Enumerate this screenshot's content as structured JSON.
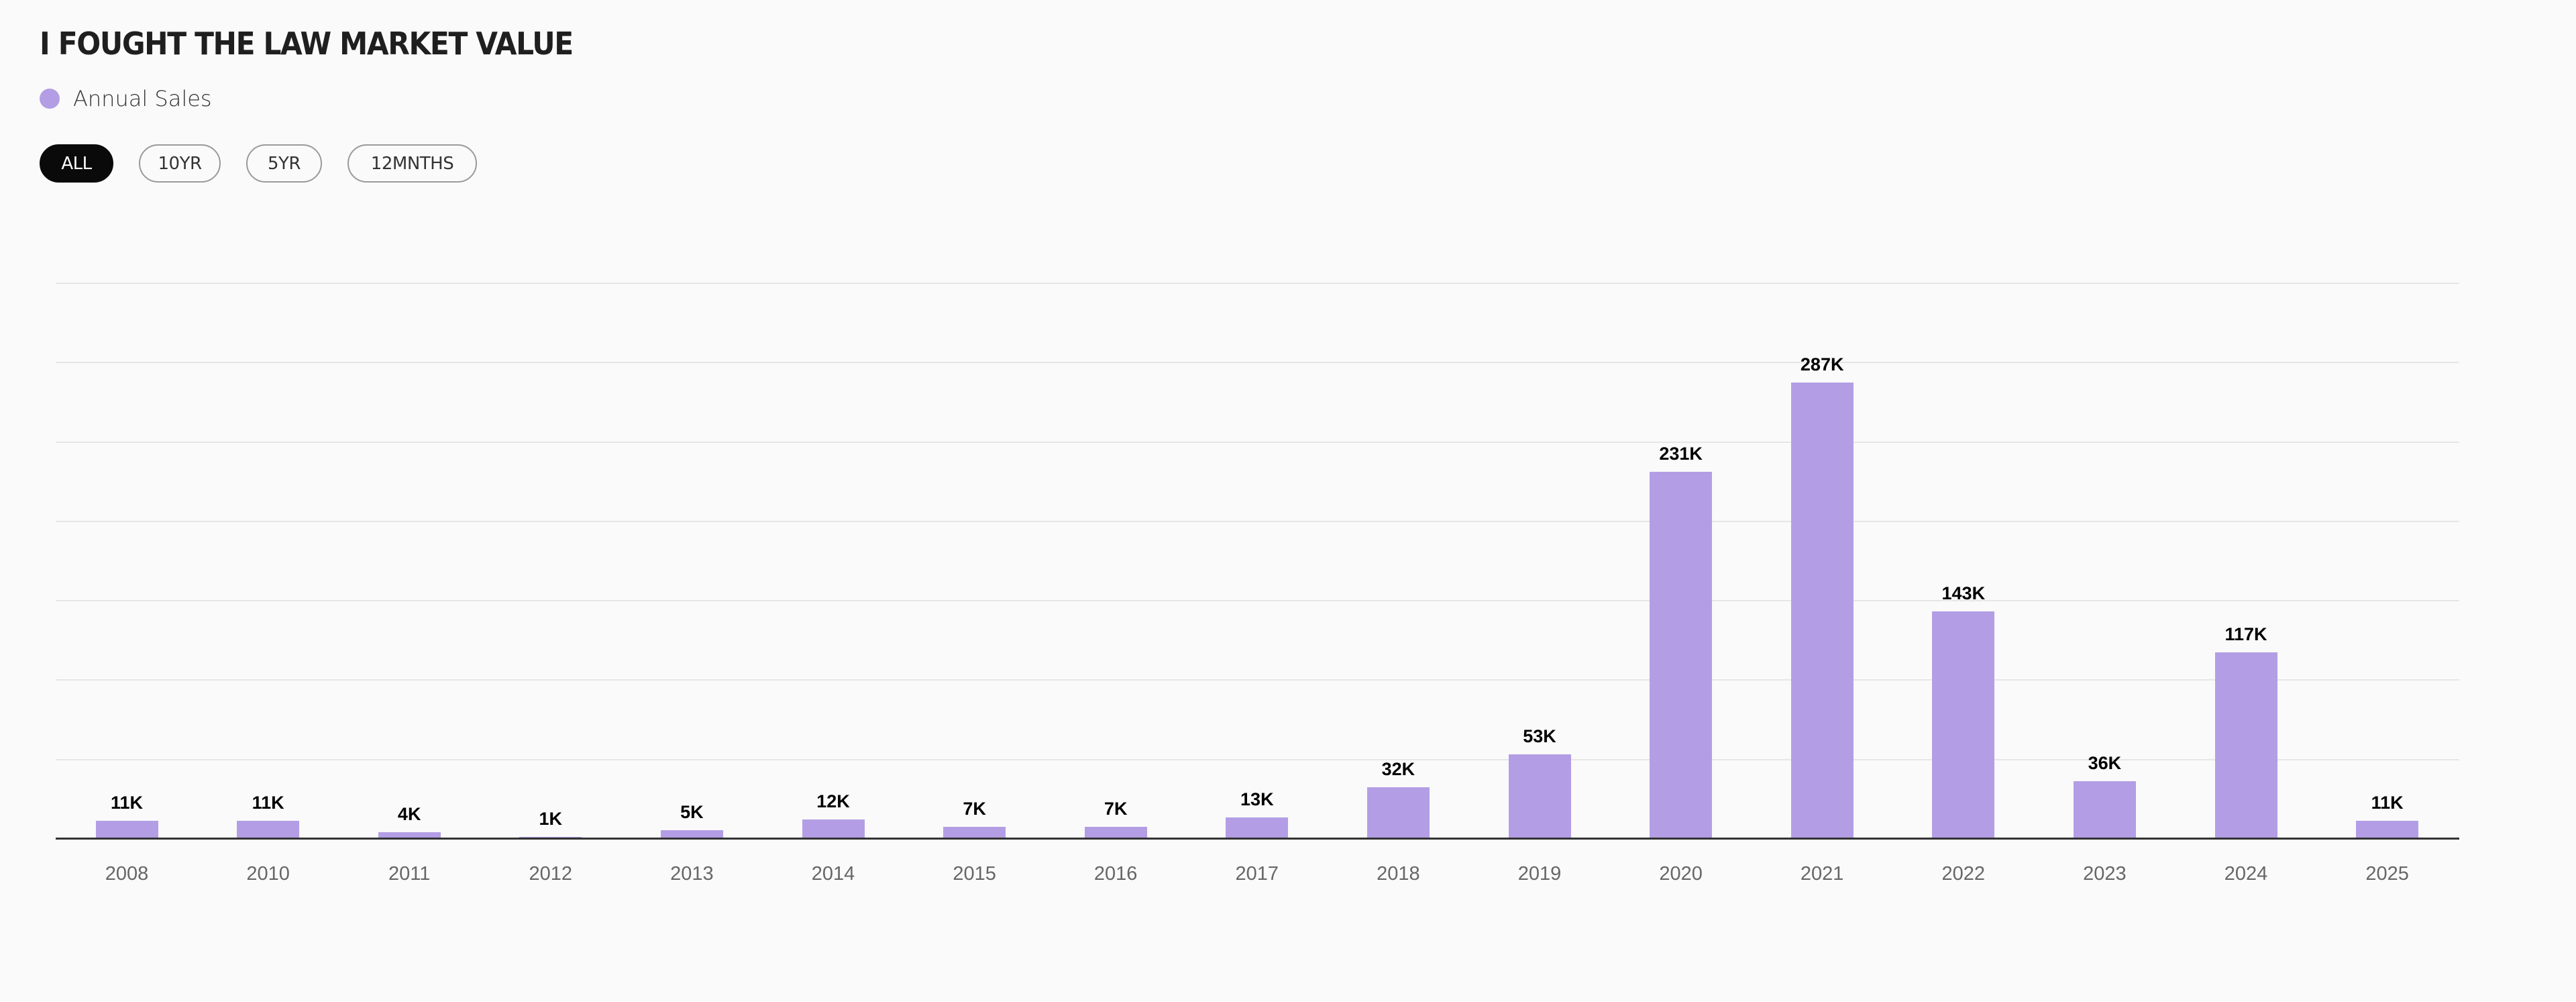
{
  "header": {
    "title": "I FOUGHT THE LAW MARKET VALUE"
  },
  "legend": {
    "items": [
      {
        "label": "Annual Sales",
        "color": "#b39ee5"
      }
    ]
  },
  "range_selector": {
    "options": [
      {
        "label": "ALL",
        "active": true
      },
      {
        "label": "10YR",
        "active": false
      },
      {
        "label": "5YR",
        "active": false
      },
      {
        "label": "12MNTHS",
        "active": false
      }
    ]
  },
  "colors": {
    "bar": "#b39ee5",
    "background": "#fafafa",
    "gridline": "#e6e6e6",
    "axis": "#333333",
    "active_button": "#0a0a0a"
  },
  "chart_data": {
    "type": "bar",
    "title": "I FOUGHT THE LAW MARKET VALUE",
    "xlabel": "",
    "ylabel": "",
    "categories": [
      "2008",
      "2010",
      "2011",
      "2012",
      "2013",
      "2014",
      "2015",
      "2016",
      "2017",
      "2018",
      "2019",
      "2020",
      "2021",
      "2022",
      "2023",
      "2024",
      "2025"
    ],
    "series": [
      {
        "name": "Annual Sales",
        "values": [
          11000,
          11000,
          4000,
          1000,
          5000,
          12000,
          7000,
          7000,
          13000,
          32000,
          53000,
          231000,
          287000,
          143000,
          36000,
          117000,
          11000
        ],
        "labels": [
          "11K",
          "11K",
          "4K",
          "1K",
          "5K",
          "12K",
          "7K",
          "7K",
          "13K",
          "32K",
          "53K",
          "231K",
          "287K",
          "143K",
          "36K",
          "117K",
          "11K"
        ]
      }
    ],
    "ylim": [
      0,
      350000
    ],
    "y_gridlines": [
      0,
      50000,
      100000,
      150000,
      200000,
      250000,
      300000,
      350000
    ],
    "grid": true,
    "y_tick_labels_visible": false,
    "legend_position": "top-left"
  }
}
